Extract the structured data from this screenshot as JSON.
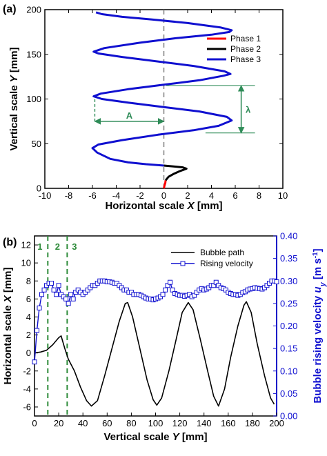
{
  "chart_data": [
    {
      "panel": "(a)",
      "type": "line",
      "xlabel": "Horizontal scale X [mm]",
      "ylabel": "Vertical scale Y [mm]",
      "xlim": [
        -10,
        10
      ],
      "ylim": [
        0,
        200
      ],
      "xticks": [
        -10,
        -8,
        -6,
        -4,
        -2,
        0,
        2,
        4,
        6,
        8,
        10
      ],
      "yticks": [
        0,
        50,
        100,
        150,
        200
      ],
      "legend": {
        "placement": "right"
      },
      "series": [
        {
          "name": "Phase 1",
          "color": "#ff0000",
          "points": [
            [
              0,
              0
            ],
            [
              0.05,
              3
            ],
            [
              0.12,
              6
            ],
            [
              0.15,
              9
            ]
          ]
        },
        {
          "name": "Phase 2",
          "color": "#000000",
          "points": [
            [
              0.15,
              9
            ],
            [
              0.4,
              13
            ],
            [
              0.8,
              16
            ],
            [
              1.3,
              19
            ],
            [
              1.7,
              21
            ],
            [
              1.9,
              22
            ],
            [
              1.6,
              23.5
            ],
            [
              0.8,
              24.5
            ],
            [
              0,
              25.5
            ]
          ]
        },
        {
          "name": "Phase 3",
          "color": "#1010d0",
          "points": [
            [
              0,
              25.5
            ],
            [
              -1.5,
              27
            ],
            [
              -3,
              29
            ],
            [
              -4.5,
              33
            ],
            [
              -5.6,
              40
            ],
            [
              -6,
              45
            ],
            [
              -5.5,
              49
            ],
            [
              -3.5,
              54
            ],
            [
              -0.5,
              60
            ],
            [
              2.5,
              65
            ],
            [
              4.6,
              70
            ],
            [
              5.7,
              76
            ],
            [
              5.3,
              80
            ],
            [
              3,
              86
            ],
            [
              0,
              91
            ],
            [
              -3,
              96
            ],
            [
              -5.2,
              100
            ],
            [
              -5.9,
              103
            ],
            [
              -5.3,
              106
            ],
            [
              -3,
              111
            ],
            [
              0,
              116
            ],
            [
              3,
              121
            ],
            [
              5,
              126
            ],
            [
              5.6,
              128
            ],
            [
              5.1,
              131
            ],
            [
              2.5,
              137
            ],
            [
              -0.5,
              142
            ],
            [
              -3.5,
              147
            ],
            [
              -5.5,
              151
            ],
            [
              -5.9,
              153
            ],
            [
              -5,
              157
            ],
            [
              -2,
              163
            ],
            [
              1,
              168
            ],
            [
              4,
              172
            ],
            [
              5.5,
              175
            ],
            [
              5.7,
              177
            ],
            [
              4.8,
              180
            ],
            [
              2,
              185
            ],
            [
              -1,
              189
            ],
            [
              -3.5,
              192
            ],
            [
              -5.2,
              195
            ],
            [
              -5.7,
              197
            ]
          ]
        }
      ],
      "reference_line": {
        "x": 0,
        "style": "dashed",
        "color": "#808080"
      },
      "annotations": [
        {
          "text": "A",
          "type": "double-arrow",
          "from": [
            -5.8,
            75
          ],
          "to": [
            0,
            75
          ],
          "color": "#2e8b57"
        },
        {
          "text": "λ",
          "type": "double-arrow",
          "from": [
            6.5,
            115
          ],
          "to": [
            6.5,
            62
          ],
          "color": "#2e8b57"
        }
      ]
    },
    {
      "panel": "(b)",
      "type": "line",
      "xlabel": "Vertical scale Y [mm]",
      "ylabel_left": "Horizontal scale X [mm]",
      "ylabel_right": "Bubble rising velocity u_y [m s^-1]",
      "xlim": [
        0,
        200
      ],
      "ylim_left": [
        -7,
        13
      ],
      "ylim_right": [
        0,
        0.4
      ],
      "xticks": [
        0,
        20,
        40,
        60,
        80,
        100,
        120,
        140,
        160,
        180,
        200
      ],
      "yticks_left": [
        -6,
        -4,
        -2,
        0,
        2,
        4,
        6,
        8,
        10,
        12
      ],
      "yticks_right": [
        0.0,
        0.05,
        0.1,
        0.15,
        0.2,
        0.25,
        0.3,
        0.35,
        0.4
      ],
      "legend": {
        "placement": "top-right"
      },
      "phase_lines": [
        {
          "label": "1",
          "x": 11
        },
        {
          "label": "2",
          "x": 27
        },
        {
          "label": "3",
          "x": 27
        }
      ],
      "series": [
        {
          "name": "Bubble path",
          "axis": "left",
          "color": "#000000",
          "points": [
            [
              0,
              0
            ],
            [
              5,
              0.1
            ],
            [
              10,
              0.3
            ],
            [
              15,
              0.9
            ],
            [
              20,
              1.7
            ],
            [
              22,
              1.9
            ],
            [
              25,
              0.5
            ],
            [
              28,
              -0.7
            ],
            [
              33,
              -2
            ],
            [
              38,
              -3.8
            ],
            [
              43,
              -5.3
            ],
            [
              47,
              -5.9
            ],
            [
              52,
              -5.3
            ],
            [
              58,
              -2.5
            ],
            [
              64,
              0.5
            ],
            [
              70,
              3.5
            ],
            [
              75,
              5.5
            ],
            [
              77,
              5.6
            ],
            [
              81,
              4
            ],
            [
              87,
              0.5
            ],
            [
              93,
              -3
            ],
            [
              98,
              -5.2
            ],
            [
              101,
              -5.8
            ],
            [
              105,
              -5
            ],
            [
              111,
              -2
            ],
            [
              117,
              1.5
            ],
            [
              122,
              4.5
            ],
            [
              127,
              5.6
            ],
            [
              131,
              4.8
            ],
            [
              137,
              1.5
            ],
            [
              143,
              -2
            ],
            [
              148,
              -4.8
            ],
            [
              152,
              -5.9
            ],
            [
              157,
              -4
            ],
            [
              162,
              -0.5
            ],
            [
              168,
              3
            ],
            [
              173,
              5.3
            ],
            [
              175,
              5.7
            ],
            [
              179,
              4.5
            ],
            [
              184,
              1
            ],
            [
              190,
              -2.5
            ],
            [
              195,
              -5
            ],
            [
              198,
              -5.7
            ]
          ]
        },
        {
          "name": "Rising velocity",
          "axis": "right",
          "color": "#1010d0",
          "points": [
            [
              0,
              0.12
            ],
            [
              2,
              0.19
            ],
            [
              4,
              0.24
            ],
            [
              6,
              0.27
            ],
            [
              8,
              0.28
            ],
            [
              10,
              0.29
            ],
            [
              12,
              0.295
            ],
            [
              14,
              0.295
            ],
            [
              16,
              0.28
            ],
            [
              18,
              0.27
            ],
            [
              20,
              0.29
            ],
            [
              22,
              0.27
            ],
            [
              24,
              0.265
            ],
            [
              26,
              0.26
            ],
            [
              28,
              0.25
            ],
            [
              30,
              0.27
            ],
            [
              32,
              0.26
            ],
            [
              34,
              0.275
            ],
            [
              36,
              0.28
            ],
            [
              38,
              0.275
            ],
            [
              40,
              0.27
            ],
            [
              42,
              0.275
            ],
            [
              44,
              0.28
            ],
            [
              46,
              0.285
            ],
            [
              48,
              0.29
            ],
            [
              50,
              0.29
            ],
            [
              52,
              0.295
            ],
            [
              54,
              0.3
            ],
            [
              56,
              0.3
            ],
            [
              58,
              0.3
            ],
            [
              60,
              0.298
            ],
            [
              62,
              0.298
            ],
            [
              64,
              0.297
            ],
            [
              66,
              0.295
            ],
            [
              68,
              0.295
            ],
            [
              70,
              0.29
            ],
            [
              72,
              0.285
            ],
            [
              74,
              0.28
            ],
            [
              76,
              0.28
            ],
            [
              78,
              0.275
            ],
            [
              80,
              0.275
            ],
            [
              82,
              0.27
            ],
            [
              84,
              0.27
            ],
            [
              86,
              0.27
            ],
            [
              88,
              0.268
            ],
            [
              90,
              0.265
            ],
            [
              92,
              0.262
            ],
            [
              94,
              0.26
            ],
            [
              96,
              0.26
            ],
            [
              98,
              0.258
            ],
            [
              100,
              0.26
            ],
            [
              102,
              0.262
            ],
            [
              104,
              0.265
            ],
            [
              106,
              0.27
            ],
            [
              108,
              0.28
            ],
            [
              110,
              0.29
            ],
            [
              112,
              0.297
            ],
            [
              114,
              0.28
            ],
            [
              116,
              0.272
            ],
            [
              118,
              0.27
            ],
            [
              120,
              0.268
            ],
            [
              122,
              0.268
            ],
            [
              124,
              0.266
            ],
            [
              126,
              0.268
            ],
            [
              128,
              0.27
            ],
            [
              130,
              0.265
            ],
            [
              132,
              0.268
            ],
            [
              134,
              0.275
            ],
            [
              136,
              0.28
            ],
            [
              138,
              0.283
            ],
            [
              140,
              0.28
            ],
            [
              142,
              0.282
            ],
            [
              144,
              0.285
            ],
            [
              146,
              0.29
            ],
            [
              148,
              0.29
            ],
            [
              150,
              0.297
            ],
            [
              152,
              0.29
            ],
            [
              154,
              0.285
            ],
            [
              156,
              0.283
            ],
            [
              158,
              0.28
            ],
            [
              160,
              0.275
            ],
            [
              162,
              0.272
            ],
            [
              164,
              0.27
            ],
            [
              166,
              0.27
            ],
            [
              168,
              0.268
            ],
            [
              170,
              0.27
            ],
            [
              172,
              0.274
            ],
            [
              174,
              0.276
            ],
            [
              176,
              0.28
            ],
            [
              178,
              0.282
            ],
            [
              180,
              0.283
            ],
            [
              182,
              0.285
            ],
            [
              184,
              0.284
            ],
            [
              186,
              0.283
            ],
            [
              188,
              0.282
            ],
            [
              190,
              0.285
            ],
            [
              192,
              0.29
            ],
            [
              194,
              0.295
            ],
            [
              196,
              0.3
            ],
            [
              198,
              0.3
            ],
            [
              200,
              0.298
            ]
          ]
        }
      ]
    }
  ]
}
